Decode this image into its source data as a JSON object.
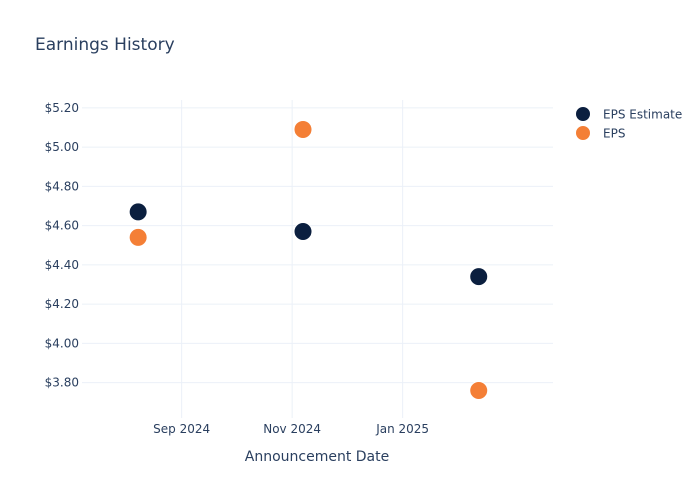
{
  "chart_data": {
    "type": "scatter",
    "title": "Earnings History",
    "xlabel": "Announcement Date",
    "ylabel": "",
    "x_ticks": [
      {
        "date": "2024-09-01",
        "label": "Sep 2024"
      },
      {
        "date": "2024-11-01",
        "label": "Nov 2024"
      },
      {
        "date": "2025-01-01",
        "label": "Jan 2025"
      }
    ],
    "xlim": [
      "2024-07-08",
      "2025-03-25"
    ],
    "y_ticks": [
      3.8,
      4.0,
      4.2,
      4.4,
      4.6,
      4.8,
      5.0,
      5.2
    ],
    "y_tick_labels": [
      "$3.80",
      "$4.00",
      "$4.20",
      "$4.40",
      "$4.60",
      "$4.80",
      "$5.00",
      "$5.20"
    ],
    "ylim": [
      3.62,
      5.24
    ],
    "grid": true,
    "legend_position": "top-right",
    "series": [
      {
        "name": "EPS Estimate",
        "color": "#0b1f3f",
        "points": [
          {
            "date": "2024-08-08",
            "value": 4.67
          },
          {
            "date": "2024-11-07",
            "value": 4.57
          },
          {
            "date": "2025-02-12",
            "value": 4.34
          }
        ]
      },
      {
        "name": "EPS",
        "color": "#f47f36",
        "points": [
          {
            "date": "2024-08-08",
            "value": 4.54
          },
          {
            "date": "2024-11-07",
            "value": 5.09
          },
          {
            "date": "2025-02-12",
            "value": 3.76
          }
        ]
      }
    ]
  }
}
